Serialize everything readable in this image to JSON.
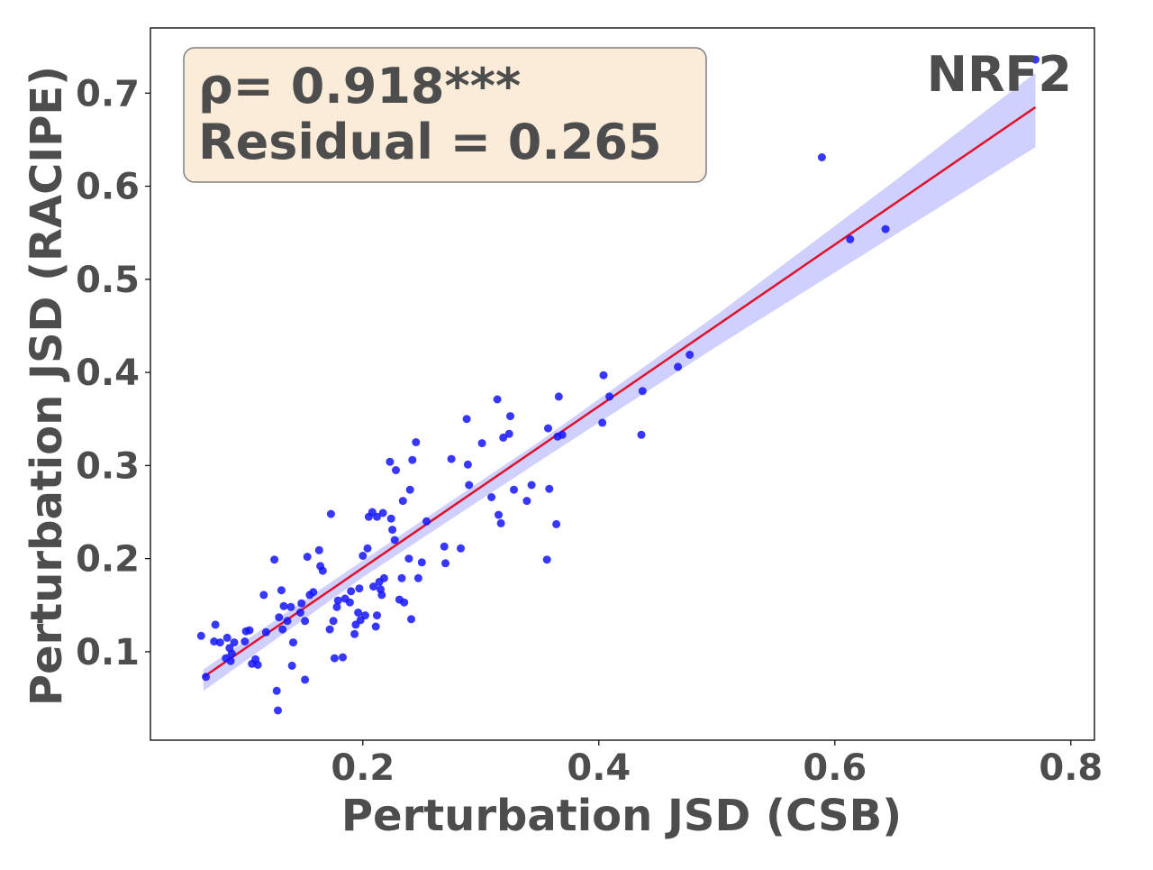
{
  "chart_data": {
    "type": "scatter",
    "xlabel": "Perturbation JSD (CSB)",
    "ylabel": "Perturbation JSD (RACIPE)",
    "panel_label": "NRF2",
    "stats": {
      "rho_text": "ρ= 0.918***",
      "residual_text": "Residual = 0.265"
    },
    "xlim": [
      0.02,
      0.82
    ],
    "ylim": [
      0.005,
      0.77
    ],
    "xticks": [
      0.2,
      0.4,
      0.6,
      0.8
    ],
    "xtick_labels": [
      "0.2",
      "0.4",
      "0.6",
      "0.8"
    ],
    "yticks": [
      0.1,
      0.2,
      0.3,
      0.4,
      0.5,
      0.6,
      0.7
    ],
    "ytick_labels": [
      "0.1",
      "0.2",
      "0.3",
      "0.4",
      "0.5",
      "0.6",
      "0.7"
    ],
    "grid": false,
    "colors": {
      "points": "#1414ff",
      "fit_line": "#e0102a",
      "confidence_band": "#c8c8ff",
      "stat_box_fill": "#faecd8",
      "stat_box_edge": "#808080",
      "text": "#4d4d4d"
    },
    "fit": {
      "slope": 0.868,
      "intercept": 0.0165,
      "x_range": [
        0.065,
        0.77
      ]
    },
    "confidence_band": [
      {
        "x": 0.065,
        "low": 0.058,
        "high": 0.081
      },
      {
        "x": 0.2,
        "low": 0.18,
        "high": 0.198
      },
      {
        "x": 0.35,
        "low": 0.305,
        "high": 0.326
      },
      {
        "x": 0.5,
        "low": 0.428,
        "high": 0.462
      },
      {
        "x": 0.65,
        "low": 0.547,
        "high": 0.605
      },
      {
        "x": 0.77,
        "low": 0.642,
        "high": 0.722
      }
    ],
    "points": [
      [
        0.063,
        0.117
      ],
      [
        0.067,
        0.073
      ],
      [
        0.074,
        0.111
      ],
      [
        0.075,
        0.129
      ],
      [
        0.079,
        0.11
      ],
      [
        0.084,
        0.093
      ],
      [
        0.085,
        0.115
      ],
      [
        0.087,
        0.104
      ],
      [
        0.088,
        0.09
      ],
      [
        0.089,
        0.098
      ],
      [
        0.091,
        0.11
      ],
      [
        0.1,
        0.111
      ],
      [
        0.101,
        0.122
      ],
      [
        0.104,
        0.123
      ],
      [
        0.106,
        0.087
      ],
      [
        0.109,
        0.092
      ],
      [
        0.111,
        0.086
      ],
      [
        0.116,
        0.161
      ],
      [
        0.118,
        0.121
      ],
      [
        0.125,
        0.199
      ],
      [
        0.127,
        0.058
      ],
      [
        0.128,
        0.037
      ],
      [
        0.129,
        0.137
      ],
      [
        0.131,
        0.166
      ],
      [
        0.132,
        0.124
      ],
      [
        0.133,
        0.149
      ],
      [
        0.136,
        0.133
      ],
      [
        0.139,
        0.148
      ],
      [
        0.14,
        0.085
      ],
      [
        0.141,
        0.11
      ],
      [
        0.147,
        0.142
      ],
      [
        0.148,
        0.152
      ],
      [
        0.151,
        0.133
      ],
      [
        0.151,
        0.07
      ],
      [
        0.153,
        0.202
      ],
      [
        0.155,
        0.161
      ],
      [
        0.158,
        0.164
      ],
      [
        0.163,
        0.209
      ],
      [
        0.164,
        0.192
      ],
      [
        0.166,
        0.187
      ],
      [
        0.172,
        0.124
      ],
      [
        0.173,
        0.248
      ],
      [
        0.175,
        0.133
      ],
      [
        0.176,
        0.093
      ],
      [
        0.178,
        0.148
      ],
      [
        0.179,
        0.155
      ],
      [
        0.183,
        0.094
      ],
      [
        0.185,
        0.157
      ],
      [
        0.189,
        0.153
      ],
      [
        0.19,
        0.165
      ],
      [
        0.193,
        0.119
      ],
      [
        0.194,
        0.129
      ],
      [
        0.196,
        0.142
      ],
      [
        0.197,
        0.168
      ],
      [
        0.198,
        0.134
      ],
      [
        0.2,
        0.203
      ],
      [
        0.202,
        0.139
      ],
      [
        0.204,
        0.211
      ],
      [
        0.205,
        0.245
      ],
      [
        0.208,
        0.25
      ],
      [
        0.209,
        0.17
      ],
      [
        0.211,
        0.127
      ],
      [
        0.212,
        0.245
      ],
      [
        0.212,
        0.139
      ],
      [
        0.214,
        0.175
      ],
      [
        0.215,
        0.167
      ],
      [
        0.216,
        0.161
      ],
      [
        0.217,
        0.249
      ],
      [
        0.218,
        0.179
      ],
      [
        0.223,
        0.304
      ],
      [
        0.224,
        0.243
      ],
      [
        0.225,
        0.231
      ],
      [
        0.227,
        0.22
      ],
      [
        0.228,
        0.295
      ],
      [
        0.231,
        0.156
      ],
      [
        0.233,
        0.179
      ],
      [
        0.234,
        0.262
      ],
      [
        0.235,
        0.153
      ],
      [
        0.239,
        0.2
      ],
      [
        0.24,
        0.274
      ],
      [
        0.241,
        0.135
      ],
      [
        0.242,
        0.306
      ],
      [
        0.245,
        0.325
      ],
      [
        0.247,
        0.179
      ],
      [
        0.25,
        0.196
      ],
      [
        0.254,
        0.24
      ],
      [
        0.269,
        0.213
      ],
      [
        0.27,
        0.195
      ],
      [
        0.275,
        0.307
      ],
      [
        0.283,
        0.211
      ],
      [
        0.288,
        0.35
      ],
      [
        0.289,
        0.301
      ],
      [
        0.29,
        0.279
      ],
      [
        0.301,
        0.324
      ],
      [
        0.309,
        0.266
      ],
      [
        0.314,
        0.371
      ],
      [
        0.315,
        0.247
      ],
      [
        0.317,
        0.238
      ],
      [
        0.319,
        0.33
      ],
      [
        0.324,
        0.334
      ],
      [
        0.325,
        0.353
      ],
      [
        0.328,
        0.274
      ],
      [
        0.339,
        0.262
      ],
      [
        0.343,
        0.279
      ],
      [
        0.356,
        0.199
      ],
      [
        0.357,
        0.34
      ],
      [
        0.358,
        0.275
      ],
      [
        0.364,
        0.237
      ],
      [
        0.365,
        0.331
      ],
      [
        0.366,
        0.374
      ],
      [
        0.369,
        0.333
      ],
      [
        0.403,
        0.346
      ],
      [
        0.404,
        0.397
      ],
      [
        0.409,
        0.374
      ],
      [
        0.436,
        0.333
      ],
      [
        0.437,
        0.38
      ],
      [
        0.467,
        0.406
      ],
      [
        0.477,
        0.419
      ],
      [
        0.589,
        0.631
      ],
      [
        0.613,
        0.543
      ],
      [
        0.643,
        0.554
      ],
      [
        0.77,
        0.736
      ]
    ]
  }
}
